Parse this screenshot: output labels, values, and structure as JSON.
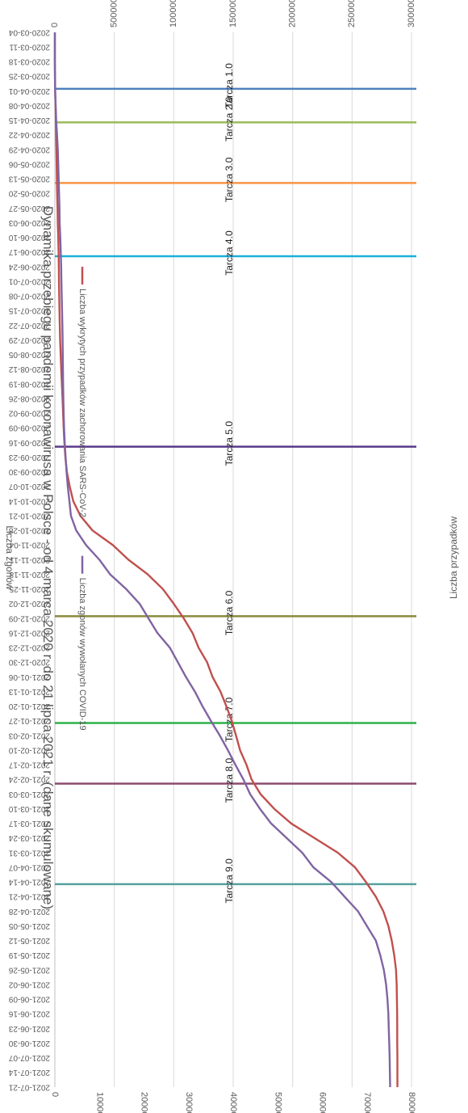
{
  "chart_data": {
    "type": "line",
    "orientation": "rotated-90-clockwise",
    "title": "Dynamika przebiegu pandemii koronawirusa w Polsce - od 4 marca 2020 r. do 21 lipca 2021 r. (dane skumulowane)",
    "xlabel": "",
    "y_left_label": "Liczba przypadków",
    "y_right_label": "Liczba zgonów",
    "y_left_lim": [
      0,
      3000000
    ],
    "y_right_lim": [
      0,
      80000
    ],
    "y_left_ticks": [
      "0",
      "500000",
      "1000000",
      "1500000",
      "2000000",
      "2500000",
      "3000000"
    ],
    "y_right_ticks": [
      "0",
      "10000",
      "20000",
      "30000",
      "40000",
      "50000",
      "60000",
      "70000",
      "80000"
    ],
    "grid": true,
    "legend_position": "top",
    "x_dates": [
      "2020-03-04",
      "2020-03-11",
      "2020-03-18",
      "2020-03-25",
      "2020-04-01",
      "2020-04-08",
      "2020-04-15",
      "2020-04-22",
      "2020-04-29",
      "2020-05-06",
      "2020-05-13",
      "2020-05-20",
      "2020-05-27",
      "2020-06-03",
      "2020-06-10",
      "2020-06-17",
      "2020-06-24",
      "2020-07-01",
      "2020-07-08",
      "2020-07-15",
      "2020-07-22",
      "2020-07-29",
      "2020-08-05",
      "2020-08-12",
      "2020-08-19",
      "2020-08-26",
      "2020-09-02",
      "2020-09-09",
      "2020-09-16",
      "2020-09-23",
      "2020-09-30",
      "2020-10-07",
      "2020-10-14",
      "2020-10-21",
      "2020-10-28",
      "2020-11-04",
      "2020-11-11",
      "2020-11-18",
      "2020-11-25",
      "2020-12-02",
      "2020-12-09",
      "2020-12-16",
      "2020-12-23",
      "2020-12-30",
      "2021-01-06",
      "2021-01-13",
      "2021-01-20",
      "2021-01-27",
      "2021-02-03",
      "2021-02-10",
      "2021-02-17",
      "2021-02-24",
      "2021-03-03",
      "2021-03-10",
      "2021-03-17",
      "2021-03-24",
      "2021-03-31",
      "2021-04-07",
      "2021-04-14",
      "2021-04-21",
      "2021-04-28",
      "2021-05-05",
      "2021-05-12",
      "2021-05-19",
      "2021-05-26",
      "2021-06-02",
      "2021-06-09",
      "2021-06-16",
      "2021-06-23",
      "2021-06-30",
      "2021-07-07",
      "2021-07-14",
      "2021-07-21"
    ],
    "series": [
      {
        "name": "Liczba wykrytych przypadków zachorowania SARS-CoV-2",
        "axis": "left",
        "color": "#c0504d",
        "values": [
          1,
          31,
          287,
          1221,
          2554,
          5575,
          7918,
          10511,
          12877,
          15047,
          17204,
          19268,
          22473,
          24395,
          28201,
          31015,
          33395,
          34775,
          36689,
          38721,
          41162,
          44416,
          48789,
          53676,
          59222,
          64689,
          69129,
          73650,
          79913,
          87963,
          101000,
          125000,
          155000,
          214686,
          317000,
          488000,
          619000,
          781000,
          909000,
          1000000,
          1084000,
          1158000,
          1209000,
          1281000,
          1326000,
          1393000,
          1442000,
          1488000,
          1524000,
          1558000,
          1612000,
          1655000,
          1730000,
          1845000,
          1988000,
          2184000,
          2380000,
          2525000,
          2617000,
          2700000,
          2763000,
          2805000,
          2834000,
          2855000,
          2870000,
          2875000,
          2877000,
          2879000,
          2880000,
          2880000,
          2881000,
          2881000,
          2881000
        ]
      },
      {
        "name": "Liczba zgonów wywołanych COVID-19",
        "axis": "right",
        "color": "#8064a2",
        "values": [
          0,
          1,
          5,
          16,
          57,
          174,
          286,
          494,
          644,
          752,
          859,
          948,
          1024,
          1074,
          1210,
          1316,
          1411,
          1463,
          1532,
          1619,
          1676,
          1732,
          1771,
          1819,
          1844,
          1893,
          1980,
          2069,
          2213,
          2399,
          2617,
          2900,
          3250,
          3600,
          4800,
          7000,
          10000,
          12400,
          16000,
          19000,
          21000,
          23000,
          25800,
          27600,
          29400,
          31400,
          33100,
          35000,
          37000,
          38800,
          40500,
          42300,
          43800,
          46000,
          48500,
          52000,
          55500,
          58000,
          62000,
          65000,
          68000,
          70000,
          72000,
          73000,
          73800,
          74300,
          74600,
          74800,
          74900,
          75000,
          75100,
          75150,
          75200
        ]
      }
    ],
    "stages": [
      {
        "label": "Tarcza 1.0",
        "date": "2020-03-31",
        "color": "#4f81bd"
      },
      {
        "label": "Tarcza 2.0",
        "date": "2020-04-16",
        "color": "#9bbb59"
      },
      {
        "label": "Tarcza 3.0",
        "date": "2020-05-15",
        "color": "#f79646"
      },
      {
        "label": "Tarcza 4.0",
        "date": "2020-06-19",
        "color": "#1cb0d8"
      },
      {
        "label": "Tarcza 5.0",
        "date": "2020-09-18",
        "color": "#5b3a8c"
      },
      {
        "label": "Tarcza 6.0",
        "date": "2020-12-08",
        "color": "#8a8a3c"
      },
      {
        "label": "Tarcza 7.0",
        "date": "2021-01-28",
        "color": "#2db34a"
      },
      {
        "label": "Tarcza 8.0",
        "date": "2021-02-26",
        "color": "#8e4a6e"
      },
      {
        "label": "Tarcza 9.0",
        "date": "2021-04-15",
        "color": "#56a0a0"
      }
    ]
  }
}
